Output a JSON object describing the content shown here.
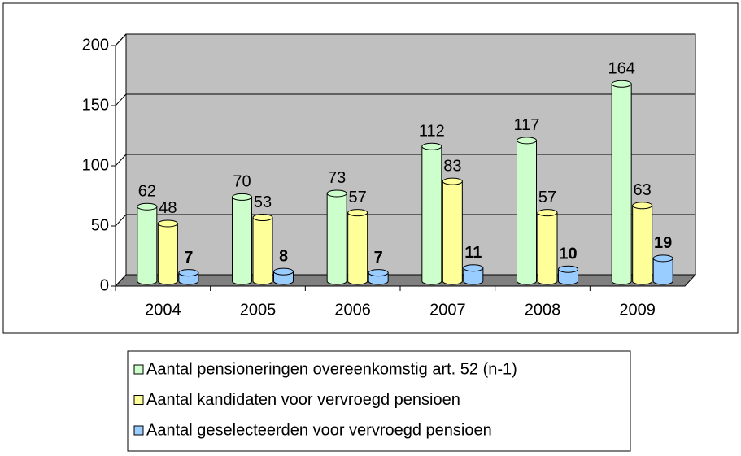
{
  "chart_data": {
    "type": "bar3d",
    "categories": [
      "2004",
      "2005",
      "2006",
      "2007",
      "2008",
      "2009"
    ],
    "series": [
      {
        "name": "Aantal pensioneringen overeenkomstig art. 52 (n-1)",
        "color": "#ccffcc",
        "values": [
          62,
          70,
          73,
          112,
          117,
          164
        ]
      },
      {
        "name": "Aantal kandidaten voor vervroegd pensioen",
        "color": "#ffff99",
        "values": [
          48,
          53,
          57,
          83,
          57,
          63
        ]
      },
      {
        "name": "Aantal geselecteerden voor vervroegd pensioen",
        "color": "#99ccff",
        "values": [
          7,
          8,
          7,
          11,
          10,
          19
        ]
      }
    ],
    "ylim": [
      0,
      200
    ],
    "yticks": [
      0,
      50,
      100,
      150,
      200
    ],
    "grid": true,
    "legend": "bottom"
  }
}
